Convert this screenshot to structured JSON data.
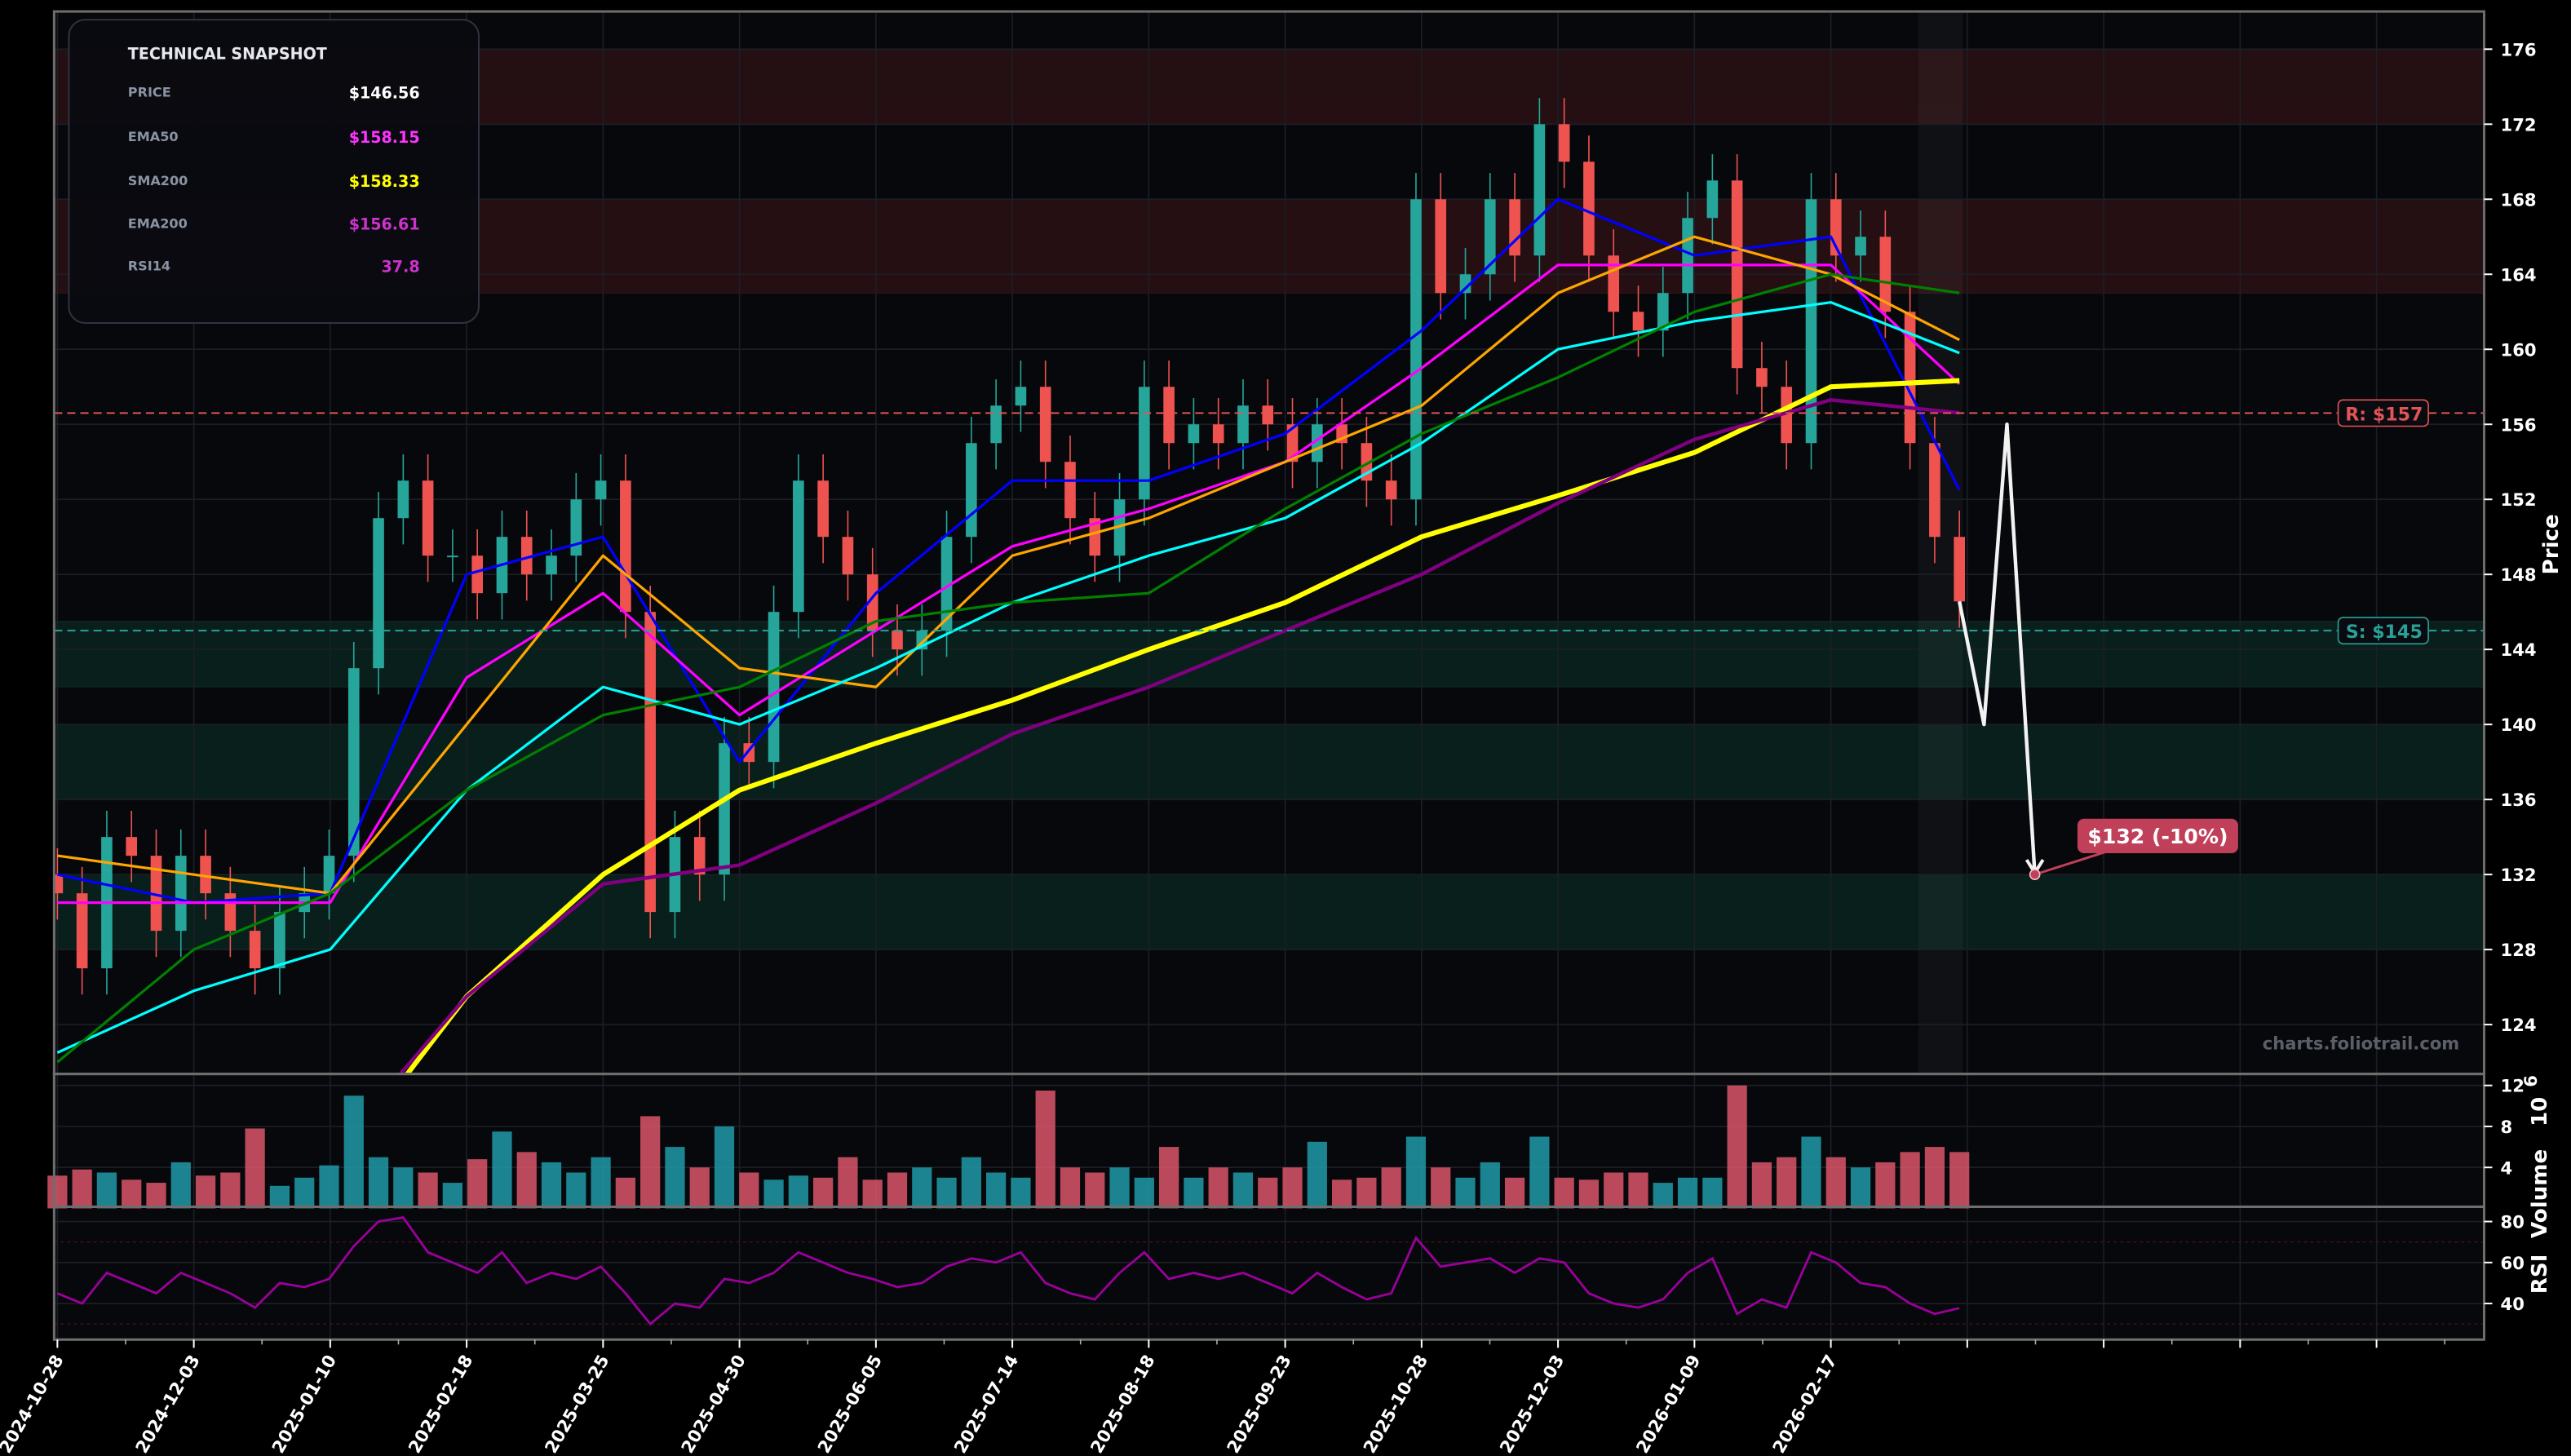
{
  "snapshot": {
    "title": "TECHNICAL SNAPSHOT",
    "rows": [
      {
        "label": "PRICE",
        "value": "$146.56",
        "color": "#ffffff"
      },
      {
        "label": "EMA50",
        "value": "$158.15",
        "color": "#ff33ff"
      },
      {
        "label": "SMA200",
        "value": "$158.33",
        "color": "#ffff00"
      },
      {
        "label": "EMA200",
        "value": "$156.61",
        "color": "#cc33cc"
      },
      {
        "label": "RSI14",
        "value": "37.8",
        "color": "#cc33cc"
      }
    ]
  },
  "watermark": "charts.foliotrail.com",
  "chart_data": {
    "type": "candlestick",
    "xlabel": "",
    "x_tick_labels": [
      "2024-10-28",
      "2024-12-03",
      "2025-01-10",
      "2025-02-18",
      "2025-03-25",
      "2025-04-30",
      "2025-06-05",
      "2025-07-14",
      "2025-08-18",
      "2025-09-23",
      "2025-10-28",
      "2025-12-03",
      "2026-01-09",
      "2026-02-17"
    ],
    "price_panel": {
      "ylabel": "Price",
      "ylim": [
        122,
        177.5
      ],
      "yticks": [
        124,
        128,
        132,
        136,
        140,
        144,
        148,
        152,
        156,
        160,
        164,
        168,
        172,
        176
      ],
      "grid": true,
      "close_samples": [
        131,
        127,
        134,
        133,
        129,
        133,
        131,
        129,
        127,
        130,
        131,
        133,
        143,
        151,
        153,
        149,
        149,
        147,
        150,
        148,
        149,
        152,
        153,
        146,
        130,
        134,
        132,
        139,
        138,
        146,
        153,
        150,
        148,
        145,
        144,
        145,
        150,
        155,
        157,
        158,
        154,
        151,
        149,
        152,
        158,
        155,
        156,
        155,
        157,
        156,
        154,
        156,
        155,
        153,
        152,
        168,
        163,
        164,
        168,
        165,
        172,
        170,
        165,
        162,
        161,
        163,
        167,
        169,
        159,
        158,
        155,
        168,
        165,
        166,
        162,
        155,
        150,
        146.56
      ],
      "up_color": "#26a69a",
      "down_color": "#ef5350",
      "moving_averages": [
        {
          "name": "",
          "color": "#0000ff",
          "values": [
            132,
            130.5,
            131,
            148,
            150,
            138,
            147,
            153,
            153,
            155.5,
            161,
            168,
            165,
            166,
            152.5
          ]
        },
        {
          "name": "EMA50",
          "color": "#ff00ff",
          "values": [
            130.5,
            130.5,
            130.5,
            142.5,
            147,
            140.5,
            145,
            149.5,
            151.5,
            154,
            159,
            164.5,
            164.5,
            164.5,
            158.15
          ]
        },
        {
          "name": "",
          "color": "#ffa500",
          "values": [
            133,
            132,
            131,
            140,
            149,
            143,
            142,
            149,
            151,
            154,
            157,
            163,
            166,
            164,
            160.5
          ]
        },
        {
          "name": "",
          "color": "#00ffff",
          "values": [
            122.5,
            125.8,
            128,
            136.5,
            142,
            140,
            143,
            146.5,
            149,
            151,
            155,
            160,
            161.5,
            162.5,
            159.8
          ]
        },
        {
          "name": "",
          "color": "#008000",
          "values": [
            122,
            128,
            131,
            136.5,
            140.5,
            142,
            145.5,
            146.5,
            147,
            151.5,
            155.5,
            158.5,
            162,
            164,
            163
          ]
        },
        {
          "name": "SMA200",
          "color": "#ffff00",
          "values": [
            null,
            null,
            116,
            125.5,
            132,
            136.5,
            139,
            141.3,
            144,
            146.5,
            150,
            152.2,
            154.5,
            158,
            158.33
          ]
        },
        {
          "name": "EMA200",
          "color": "#800080",
          "values": [
            null,
            null,
            117,
            125.5,
            131.5,
            132.5,
            135.8,
            139.5,
            142,
            145,
            148,
            151.8,
            155.2,
            157.3,
            156.61
          ]
        }
      ],
      "resistance": {
        "label": "R: $157",
        "value": 156.6,
        "color": "#e05555"
      },
      "support": {
        "label": "S: $145",
        "value": 145,
        "color": "#2aa198"
      },
      "resistance_zones": [
        [
          172,
          176
        ],
        [
          163,
          168
        ]
      ],
      "support_zones": [
        [
          142,
          145.5
        ],
        [
          136,
          140
        ],
        [
          128,
          132
        ]
      ],
      "forecast": {
        "path": [
          146.56,
          140,
          156,
          132
        ],
        "target_label": "$132 (-10%)",
        "color": "#c0405a"
      }
    },
    "volume_panel": {
      "ylabel": "Volume",
      "scale_label": "10",
      "scale_exp": "6",
      "ylim": [
        0,
        13
      ],
      "yticks": [
        4,
        8,
        12
      ],
      "values": [
        3.2,
        3.8,
        3.5,
        2.8,
        2.5,
        4.5,
        3.2,
        3.5,
        7.8,
        2.2,
        3,
        4.2,
        11,
        5,
        4,
        3.5,
        2.5,
        4.8,
        7.5,
        5.5,
        4.5,
        3.5,
        5,
        3,
        9,
        6,
        4,
        8,
        3.5,
        2.8,
        3.2,
        3,
        5,
        2.8,
        3.5,
        4,
        3,
        5,
        3.5,
        3,
        11.5,
        4,
        3.5,
        4,
        3,
        6,
        3,
        4,
        3.5,
        3,
        4,
        6.5,
        2.8,
        3,
        4,
        7,
        4,
        3,
        4.5,
        3,
        7,
        3,
        2.8,
        3.5,
        3.5,
        2.5,
        3,
        3,
        12,
        4.5,
        5,
        7,
        5,
        4,
        4.5,
        5.5,
        6,
        5.5
      ]
    },
    "rsi_panel": {
      "ylabel": "RSI",
      "ylim": [
        22,
        87
      ],
      "yticks": [
        40,
        60,
        80
      ],
      "color": "#9b009b",
      "values": [
        45,
        40,
        55,
        50,
        45,
        55,
        50,
        45,
        38,
        50,
        48,
        52,
        68,
        80,
        82,
        65,
        60,
        55,
        65,
        50,
        55,
        52,
        58,
        45,
        30,
        40,
        38,
        52,
        50,
        55,
        65,
        60,
        55,
        52,
        48,
        50,
        58,
        62,
        60,
        65,
        50,
        45,
        42,
        55,
        65,
        52,
        55,
        52,
        55,
        50,
        45,
        55,
        48,
        42,
        45,
        72,
        58,
        60,
        62,
        55,
        62,
        60,
        45,
        40,
        38,
        42,
        55,
        62,
        35,
        42,
        38,
        65,
        60,
        50,
        48,
        40,
        35,
        37.8
      ]
    }
  }
}
